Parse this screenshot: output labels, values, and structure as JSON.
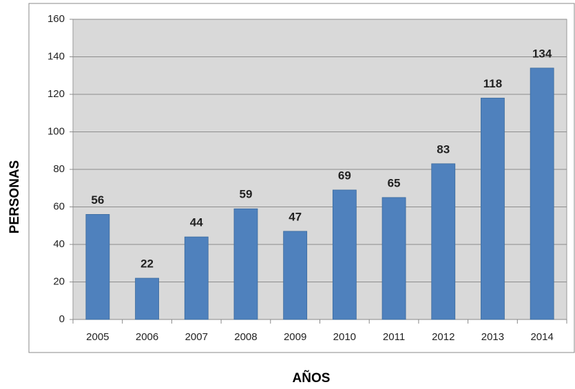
{
  "chart_data": {
    "type": "bar",
    "categories": [
      "2005",
      "2006",
      "2007",
      "2008",
      "2009",
      "2010",
      "2011",
      "2012",
      "2013",
      "2014"
    ],
    "values": [
      56,
      22,
      44,
      59,
      47,
      69,
      65,
      83,
      118,
      134
    ],
    "color": "#4f81bd",
    "x_label": "AÑOS",
    "y_label": "PERSONAS",
    "ylim": [
      0,
      160
    ],
    "yticks": [
      0,
      20,
      40,
      60,
      80,
      100,
      120,
      140,
      160
    ],
    "grid": true
  }
}
